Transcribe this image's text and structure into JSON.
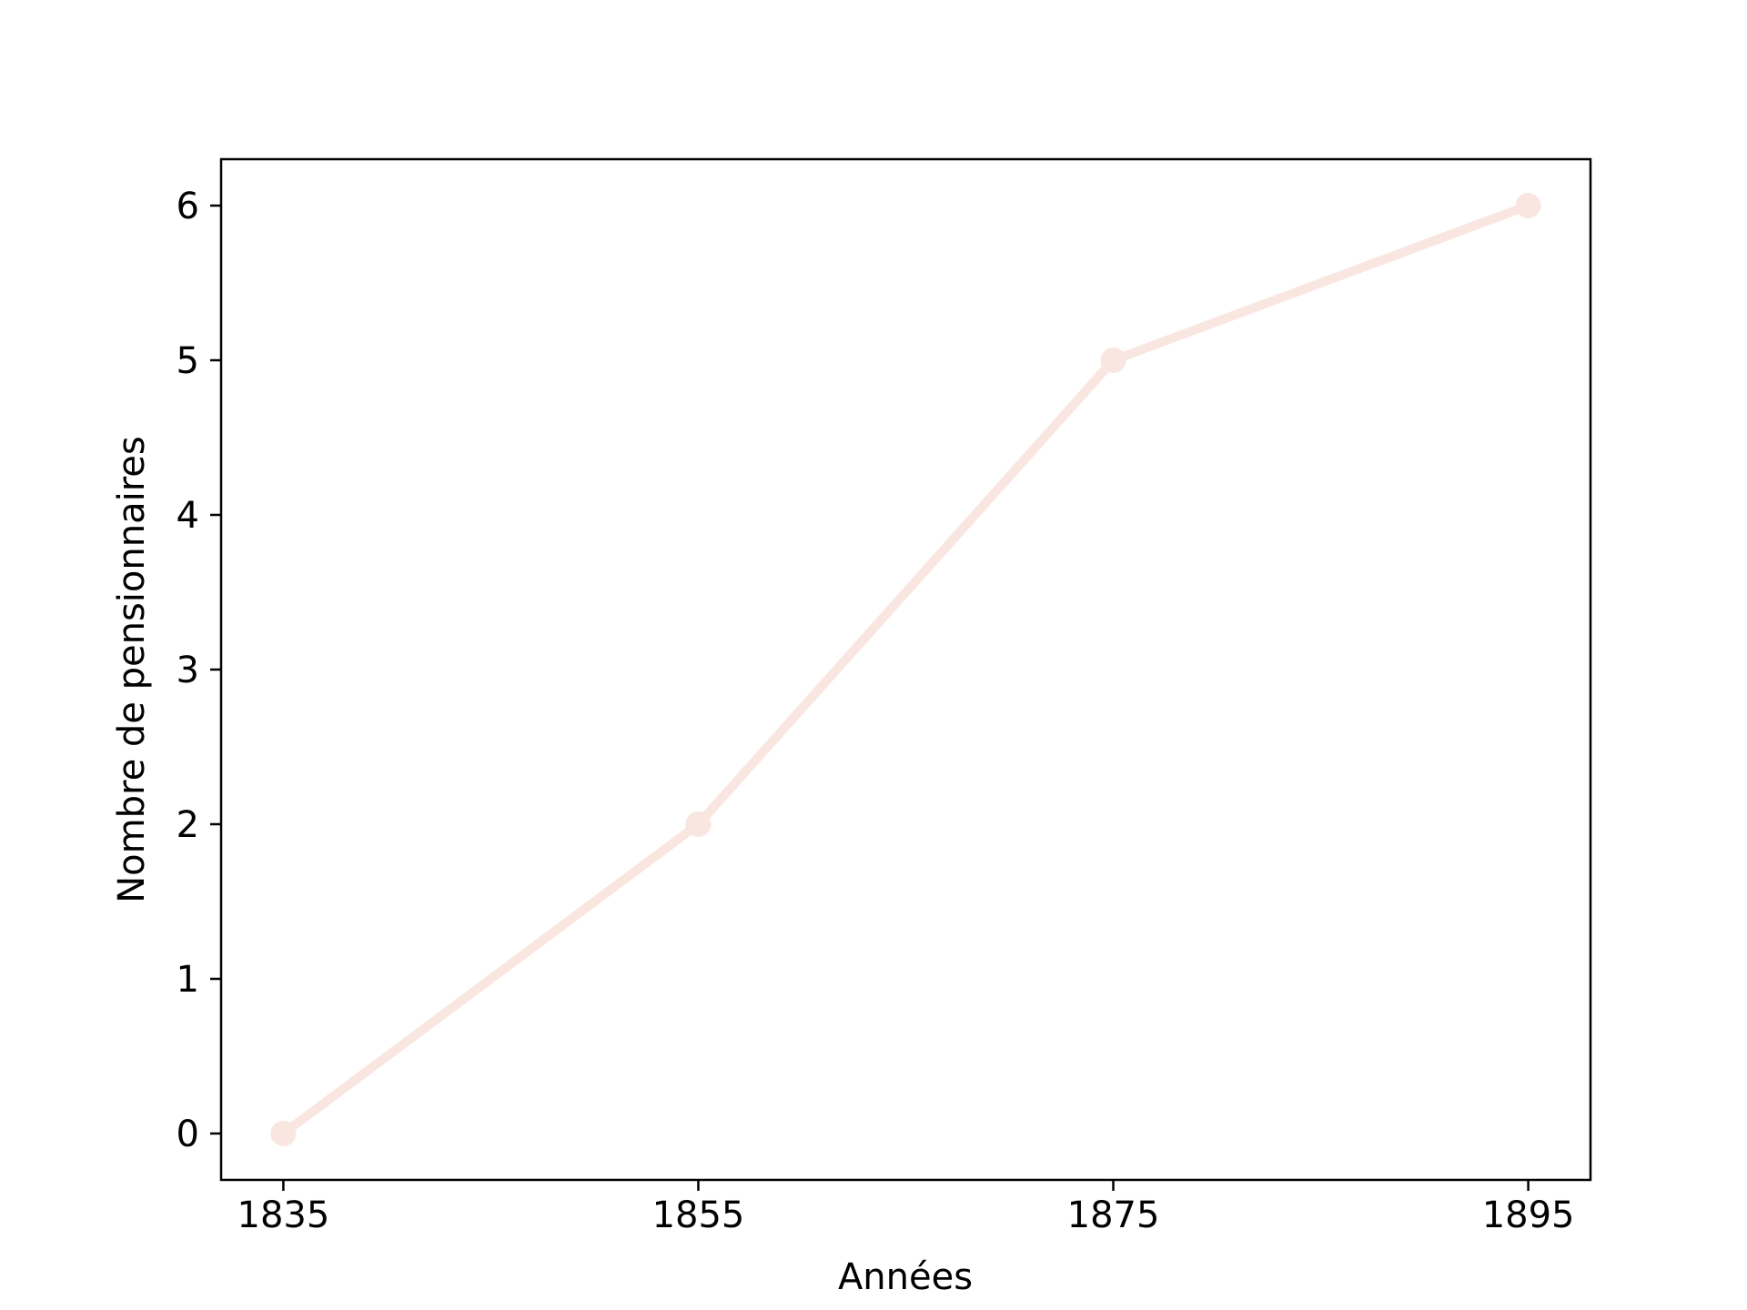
{
  "chart_data": {
    "type": "line",
    "title": "",
    "xlabel": "Années",
    "ylabel": "Nombre de pensionnaires",
    "x": [
      1835,
      1855,
      1875,
      1895
    ],
    "series": [
      {
        "values": [
          0,
          2,
          5,
          6
        ],
        "color": "#f9e6e0",
        "marker": "circle"
      }
    ],
    "xticks": [
      1835,
      1855,
      1875,
      1895
    ],
    "yticks": [
      0,
      1,
      2,
      3,
      4,
      5,
      6
    ],
    "xlim": [
      1832,
      1898
    ],
    "ylim": [
      -0.3,
      6.3
    ],
    "grid": false,
    "legend": "none"
  }
}
